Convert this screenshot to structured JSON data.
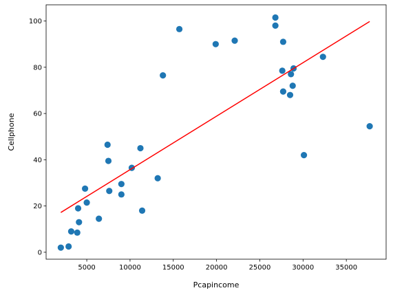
{
  "chart_data": {
    "type": "scatter",
    "xlabel": "Pcapincome",
    "ylabel": "Cellphone",
    "xlim": [
      300,
      39600
    ],
    "ylim": [
      -3,
      107
    ],
    "x_ticks": [
      5000,
      10000,
      15000,
      20000,
      25000,
      30000,
      35000
    ],
    "y_ticks": [
      0,
      20,
      40,
      60,
      80,
      100
    ],
    "grid": false,
    "legend": "none",
    "point_color": "#1f77b4",
    "line_color": "#ff0000",
    "points": [
      {
        "x": 2000,
        "y": 2
      },
      {
        "x": 2900,
        "y": 2.5
      },
      {
        "x": 3200,
        "y": 9
      },
      {
        "x": 3900,
        "y": 8.5
      },
      {
        "x": 4000,
        "y": 19
      },
      {
        "x": 4100,
        "y": 13
      },
      {
        "x": 4800,
        "y": 27.5
      },
      {
        "x": 5000,
        "y": 21.5
      },
      {
        "x": 6400,
        "y": 14.5
      },
      {
        "x": 7400,
        "y": 46.5
      },
      {
        "x": 7500,
        "y": 39.5
      },
      {
        "x": 7600,
        "y": 26.5
      },
      {
        "x": 9000,
        "y": 29.5
      },
      {
        "x": 9000,
        "y": 25
      },
      {
        "x": 10200,
        "y": 36.5
      },
      {
        "x": 11200,
        "y": 45
      },
      {
        "x": 11400,
        "y": 18
      },
      {
        "x": 13200,
        "y": 32
      },
      {
        "x": 13800,
        "y": 76.5
      },
      {
        "x": 15700,
        "y": 96.5
      },
      {
        "x": 19900,
        "y": 90
      },
      {
        "x": 22100,
        "y": 91.5
      },
      {
        "x": 26800,
        "y": 101.5
      },
      {
        "x": 26800,
        "y": 98
      },
      {
        "x": 27600,
        "y": 78.5
      },
      {
        "x": 27700,
        "y": 91
      },
      {
        "x": 27700,
        "y": 69.5
      },
      {
        "x": 28500,
        "y": 68
      },
      {
        "x": 28600,
        "y": 77
      },
      {
        "x": 28800,
        "y": 72
      },
      {
        "x": 28900,
        "y": 79.5
      },
      {
        "x": 30100,
        "y": 42
      },
      {
        "x": 32300,
        "y": 84.5
      },
      {
        "x": 37700,
        "y": 54.5
      }
    ],
    "fit_line": {
      "x": [
        2000,
        37700
      ],
      "y": [
        17.2,
        99.8
      ]
    }
  }
}
